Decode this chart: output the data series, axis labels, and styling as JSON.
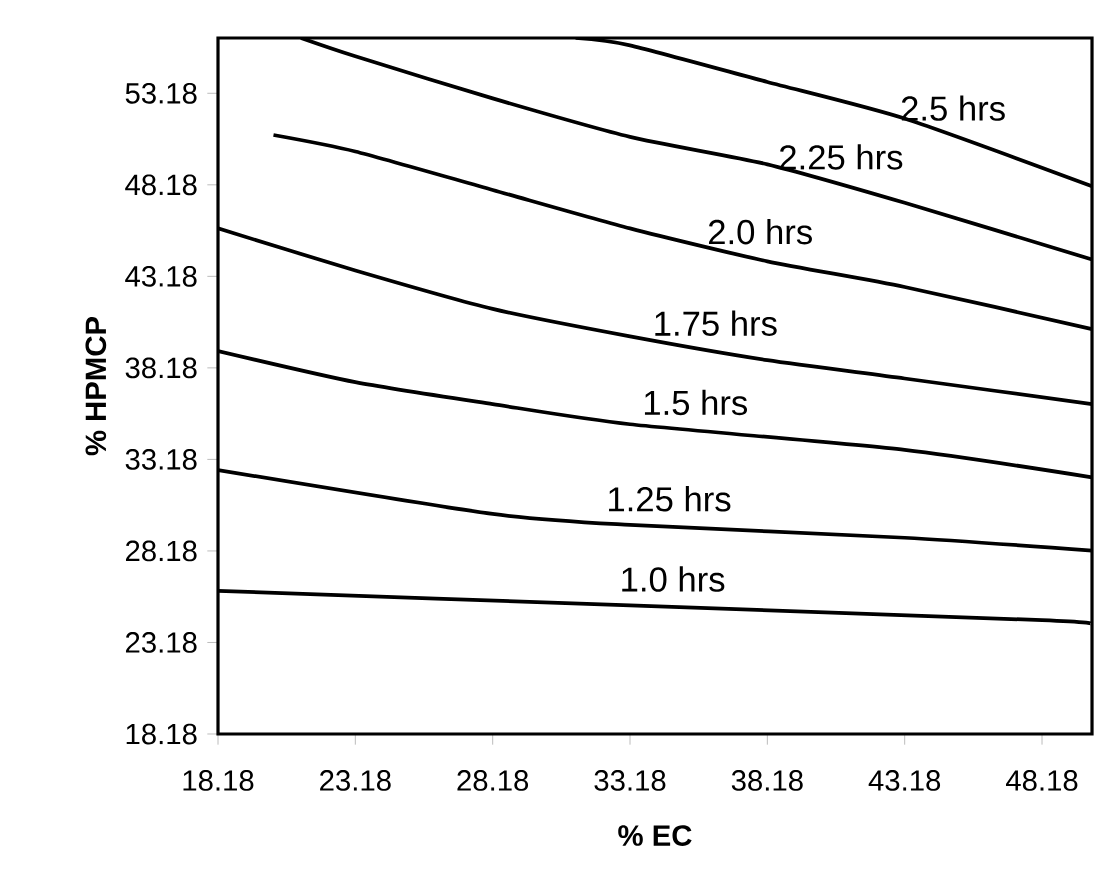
{
  "chart_data": {
    "type": "line",
    "xlabel": "% EC",
    "ylabel": "% HPMCP",
    "xlim": [
      18.18,
      50.0
    ],
    "ylim": [
      18.18,
      56.2
    ],
    "xticks": [
      18.18,
      23.18,
      28.18,
      33.18,
      38.18,
      43.18,
      48.18
    ],
    "yticks": [
      18.18,
      23.18,
      28.18,
      33.18,
      38.18,
      43.18,
      48.18,
      53.18
    ],
    "grid": false,
    "legend": false,
    "marker": "none",
    "line_style": "solid",
    "series": [
      {
        "name": "1.0 hrs",
        "color": "#000000",
        "x": [
          18.18,
          33.18,
          48.18,
          50.0
        ],
        "values": [
          26.0,
          25.2,
          24.4,
          24.2
        ]
      },
      {
        "name": "1.25 hrs",
        "color": "#000000",
        "x": [
          18.18,
          28.18,
          33.18,
          43.18,
          50.0
        ],
        "values": [
          32.6,
          30.2,
          29.6,
          28.9,
          28.2
        ]
      },
      {
        "name": "1.5 hrs",
        "color": "#000000",
        "x": [
          18.18,
          23.18,
          28.18,
          33.18,
          43.18,
          50.0
        ],
        "values": [
          39.1,
          37.4,
          36.2,
          35.1,
          33.7,
          32.2
        ]
      },
      {
        "name": "1.75 hrs",
        "color": "#000000",
        "x": [
          18.18,
          23.18,
          28.18,
          33.18,
          38.18,
          43.18,
          50.0
        ],
        "values": [
          45.8,
          43.5,
          41.4,
          39.9,
          38.6,
          37.6,
          36.2
        ]
      },
      {
        "name": "2.0 hrs",
        "color": "#000000",
        "x": [
          20.2,
          23.18,
          28.18,
          33.18,
          38.18,
          43.18,
          50.0
        ],
        "values": [
          50.9,
          50.0,
          47.9,
          45.8,
          44.0,
          42.6,
          40.3
        ]
      },
      {
        "name": "2.25 hrs",
        "color": "#000000",
        "x": [
          21.2,
          23.18,
          28.18,
          33.18,
          38.18,
          43.18,
          50.0
        ],
        "values": [
          56.2,
          55.2,
          52.9,
          50.8,
          49.3,
          47.2,
          44.1
        ]
      },
      {
        "name": "2.5 hrs",
        "color": "#000000",
        "x": [
          31.2,
          33.18,
          38.18,
          43.18,
          50.0
        ],
        "values": [
          56.2,
          55.8,
          53.8,
          51.8,
          48.1
        ]
      }
    ]
  }
}
